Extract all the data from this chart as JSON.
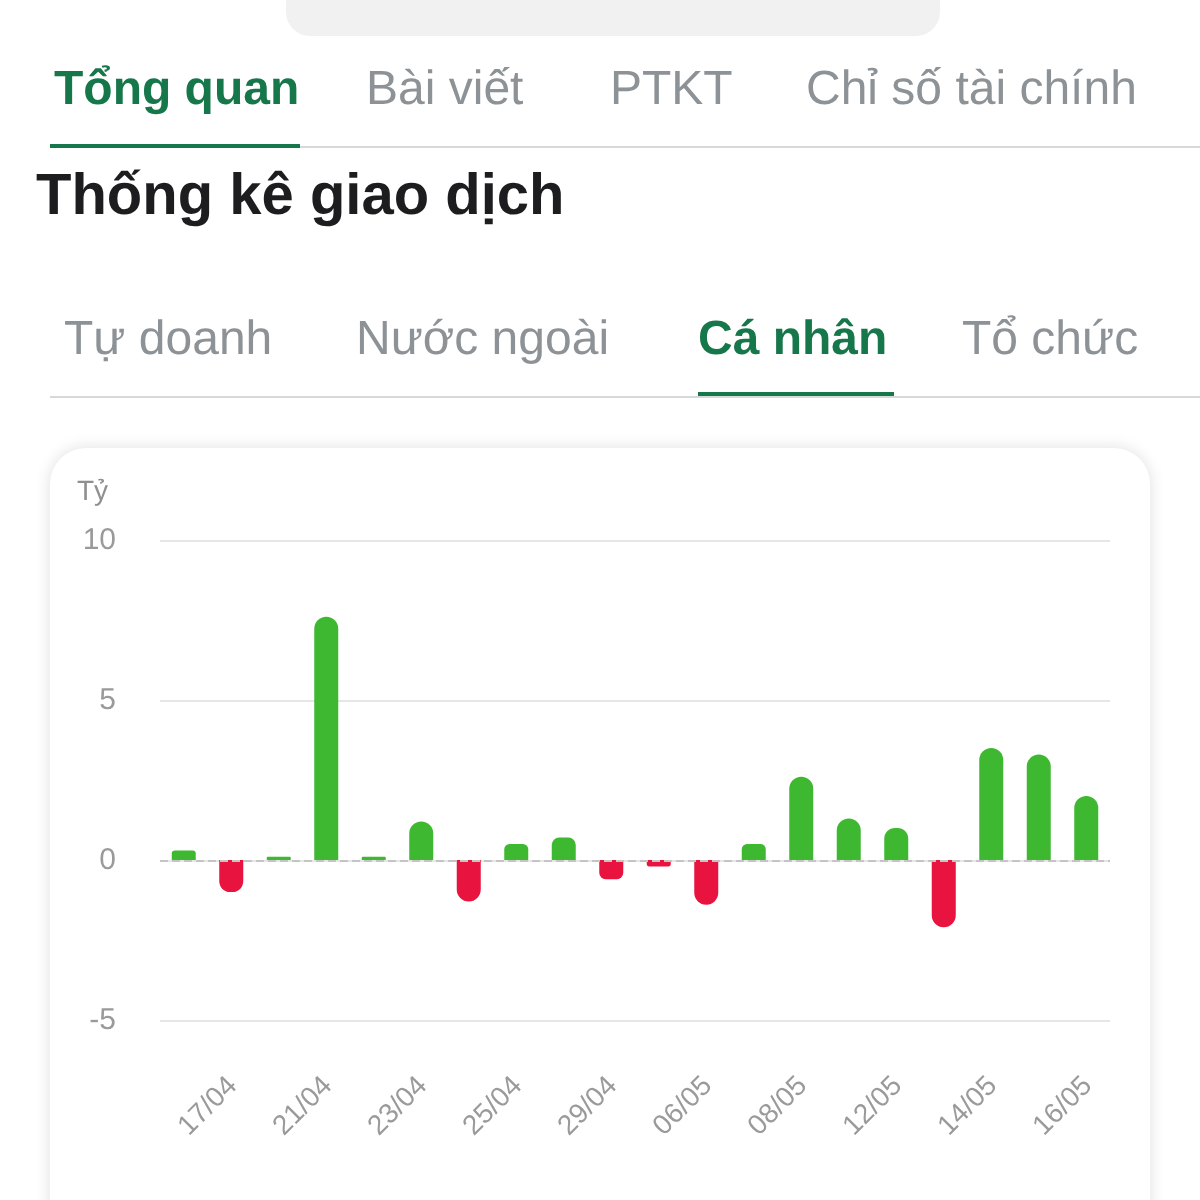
{
  "chart_data": {
    "type": "bar",
    "title": "Thống kê giao dịch",
    "annotations": [
      "Tổng quan",
      "Bài viết",
      "PTKT",
      "Chỉ số tài chính",
      "Tự doanh",
      "Nước ngoài",
      "Cá nhân",
      "Tổ chức"
    ],
    "ylabel": "Tỷ",
    "categories": [
      null,
      "17/04",
      null,
      "21/04",
      null,
      "23/04",
      null,
      "25/04",
      null,
      "29/04",
      null,
      "06/05",
      null,
      "08/05",
      null,
      "12/05",
      null,
      "14/05",
      null,
      "16/05"
    ],
    "values": [
      0.3,
      -1.0,
      0.1,
      7.6,
      0.1,
      1.2,
      -1.3,
      0.5,
      0.7,
      -0.6,
      -0.2,
      -1.4,
      0.5,
      2.6,
      1.3,
      1.0,
      -2.1,
      3.5,
      3.3,
      2.0
    ],
    "colors": [
      "#3db830",
      "#e8133e",
      "#3db830",
      "#3db830",
      "#3db830",
      "#3db830",
      "#e8133e",
      "#3db830",
      "#3db830",
      "#e8133e",
      "#e8133e",
      "#e8133e",
      "#3db830",
      "#3db830",
      "#3db830",
      "#3db830",
      "#e8133e",
      "#3db830",
      "#3db830",
      "#3db830"
    ],
    "ylim": [
      -5,
      10
    ],
    "yticks": [
      -5,
      0,
      5,
      10
    ],
    "grid": "y",
    "ref_lines": [
      {
        "axis": "y",
        "value": 0,
        "color": "#c4c4c4",
        "line_style": "dashed"
      }
    ]
  }
}
